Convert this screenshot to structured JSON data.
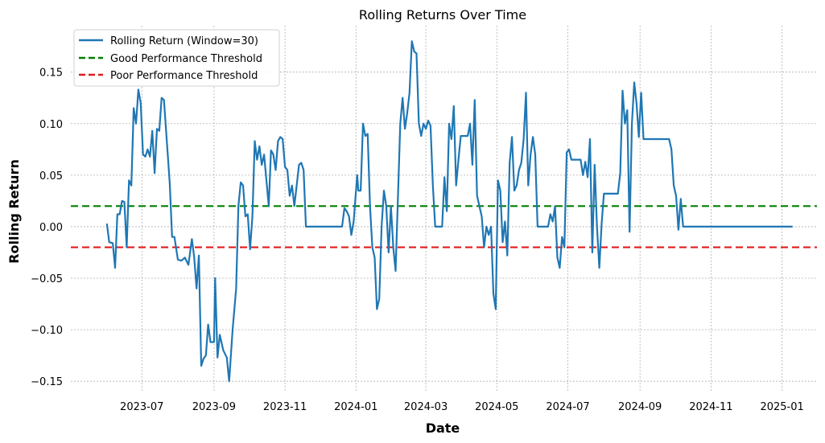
{
  "chart_data": {
    "type": "line",
    "title": "Rolling Returns Over Time",
    "xlabel": "Date",
    "ylabel": "Rolling Return",
    "x_ticks": [
      "2023-07",
      "2023-09",
      "2023-11",
      "2024-01",
      "2024-03",
      "2024-05",
      "2024-07",
      "2024-09",
      "2024-11",
      "2025-01"
    ],
    "y_ticks": [
      0.15,
      0.1,
      0.05,
      0.0,
      -0.05,
      -0.1,
      -0.15
    ],
    "y_tick_labels": [
      "0.15",
      "0.10",
      "0.05",
      "0.00",
      "−0.05",
      "−0.10",
      "−0.15"
    ],
    "xlim": [
      "2023-05-01",
      "2025-01-31"
    ],
    "ylim": [
      -0.16,
      0.195
    ],
    "grid": true,
    "legend_position": "top-left",
    "series": [
      {
        "name": "Rolling Return (Window=30)",
        "color": "#1f77b4",
        "style": "solid",
        "points": [
          [
            "2023-06-01",
            0.003
          ],
          [
            "2023-06-03",
            -0.015
          ],
          [
            "2023-06-06",
            -0.016
          ],
          [
            "2023-06-08",
            -0.04
          ],
          [
            "2023-06-10",
            0.012
          ],
          [
            "2023-06-12",
            0.012
          ],
          [
            "2023-06-14",
            0.025
          ],
          [
            "2023-06-16",
            0.024
          ],
          [
            "2023-06-18",
            -0.02
          ],
          [
            "2023-06-20",
            0.045
          ],
          [
            "2023-06-22",
            0.04
          ],
          [
            "2023-06-24",
            0.115
          ],
          [
            "2023-06-26",
            0.1
          ],
          [
            "2023-06-28",
            0.133
          ],
          [
            "2023-06-30",
            0.12
          ],
          [
            "2023-07-02",
            0.07
          ],
          [
            "2023-07-04",
            0.068
          ],
          [
            "2023-07-06",
            0.075
          ],
          [
            "2023-07-08",
            0.068
          ],
          [
            "2023-07-10",
            0.093
          ],
          [
            "2023-07-12",
            0.052
          ],
          [
            "2023-07-14",
            0.095
          ],
          [
            "2023-07-16",
            0.093
          ],
          [
            "2023-07-18",
            0.125
          ],
          [
            "2023-07-20",
            0.123
          ],
          [
            "2023-07-25",
            0.042
          ],
          [
            "2023-07-27",
            -0.01
          ],
          [
            "2023-07-29",
            -0.01
          ],
          [
            "2023-08-01",
            -0.032
          ],
          [
            "2023-08-04",
            -0.033
          ],
          [
            "2023-08-07",
            -0.03
          ],
          [
            "2023-08-10",
            -0.037
          ],
          [
            "2023-08-13",
            -0.012
          ],
          [
            "2023-08-15",
            -0.03
          ],
          [
            "2023-08-17",
            -0.06
          ],
          [
            "2023-08-19",
            -0.028
          ],
          [
            "2023-08-21",
            -0.135
          ],
          [
            "2023-08-23",
            -0.128
          ],
          [
            "2023-08-25",
            -0.125
          ],
          [
            "2023-08-27",
            -0.095
          ],
          [
            "2023-08-29",
            -0.112
          ],
          [
            "2023-09-01",
            -0.112
          ],
          [
            "2023-09-02",
            -0.05
          ],
          [
            "2023-09-04",
            -0.127
          ],
          [
            "2023-09-06",
            -0.105
          ],
          [
            "2023-09-09",
            -0.12
          ],
          [
            "2023-09-12",
            -0.127
          ],
          [
            "2023-09-14",
            -0.15
          ],
          [
            "2023-09-17",
            -0.1
          ],
          [
            "2023-09-20",
            -0.06
          ],
          [
            "2023-09-22",
            0.02
          ],
          [
            "2023-09-24",
            0.043
          ],
          [
            "2023-09-26",
            0.04
          ],
          [
            "2023-09-28",
            0.01
          ],
          [
            "2023-09-30",
            0.012
          ],
          [
            "2023-10-02",
            -0.022
          ],
          [
            "2023-10-04",
            0.01
          ],
          [
            "2023-10-06",
            0.083
          ],
          [
            "2023-10-08",
            0.065
          ],
          [
            "2023-10-10",
            0.078
          ],
          [
            "2023-10-12",
            0.06
          ],
          [
            "2023-10-14",
            0.07
          ],
          [
            "2023-10-18",
            0.02
          ],
          [
            "2023-10-20",
            0.074
          ],
          [
            "2023-10-22",
            0.07
          ],
          [
            "2023-10-24",
            0.055
          ],
          [
            "2023-10-26",
            0.083
          ],
          [
            "2023-10-28",
            0.087
          ],
          [
            "2023-10-30",
            0.085
          ],
          [
            "2023-11-01",
            0.058
          ],
          [
            "2023-11-03",
            0.055
          ],
          [
            "2023-11-05",
            0.03
          ],
          [
            "2023-11-07",
            0.04
          ],
          [
            "2023-11-09",
            0.02
          ],
          [
            "2023-11-11",
            0.04
          ],
          [
            "2023-11-13",
            0.06
          ],
          [
            "2023-11-15",
            0.062
          ],
          [
            "2023-11-17",
            0.055
          ],
          [
            "2023-11-19",
            0.0
          ],
          [
            "2023-12-20",
            0.0
          ],
          [
            "2023-12-22",
            0.018
          ],
          [
            "2023-12-24",
            0.015
          ],
          [
            "2023-12-26",
            0.01
          ],
          [
            "2023-12-28",
            -0.008
          ],
          [
            "2023-12-30",
            0.005
          ],
          [
            "2024-01-01",
            0.035
          ],
          [
            "2024-01-02",
            0.05
          ],
          [
            "2024-01-03",
            0.035
          ],
          [
            "2024-01-05",
            0.035
          ],
          [
            "2024-01-07",
            0.1
          ],
          [
            "2024-01-09",
            0.088
          ],
          [
            "2024-01-11",
            0.09
          ],
          [
            "2024-01-13",
            0.02
          ],
          [
            "2024-01-15",
            -0.02
          ],
          [
            "2024-01-17",
            -0.03
          ],
          [
            "2024-01-19",
            -0.08
          ],
          [
            "2024-01-21",
            -0.07
          ],
          [
            "2024-01-23",
            0.0
          ],
          [
            "2024-01-25",
            0.035
          ],
          [
            "2024-01-27",
            0.02
          ],
          [
            "2024-01-29",
            -0.025
          ],
          [
            "2024-01-31",
            0.02
          ],
          [
            "2024-02-02",
            -0.02
          ],
          [
            "2024-02-04",
            -0.043
          ],
          [
            "2024-02-06",
            0.028
          ],
          [
            "2024-02-08",
            0.1
          ],
          [
            "2024-02-10",
            0.125
          ],
          [
            "2024-02-12",
            0.095
          ],
          [
            "2024-02-14",
            0.11
          ],
          [
            "2024-02-16",
            0.13
          ],
          [
            "2024-02-18",
            0.18
          ],
          [
            "2024-02-20",
            0.17
          ],
          [
            "2024-02-22",
            0.168
          ],
          [
            "2024-02-24",
            0.1
          ],
          [
            "2024-02-26",
            0.088
          ],
          [
            "2024-02-28",
            0.1
          ],
          [
            "2024-03-01",
            0.095
          ],
          [
            "2024-03-03",
            0.103
          ],
          [
            "2024-03-05",
            0.098
          ],
          [
            "2024-03-07",
            0.04
          ],
          [
            "2024-03-09",
            0.0
          ],
          [
            "2024-03-15",
            0.0
          ],
          [
            "2024-03-17",
            0.048
          ],
          [
            "2024-03-19",
            0.015
          ],
          [
            "2024-03-21",
            0.1
          ],
          [
            "2024-03-23",
            0.085
          ],
          [
            "2024-03-25",
            0.117
          ],
          [
            "2024-03-27",
            0.04
          ],
          [
            "2024-03-29",
            0.065
          ],
          [
            "2024-03-31",
            0.088
          ],
          [
            "2024-04-06",
            0.088
          ],
          [
            "2024-04-08",
            0.1
          ],
          [
            "2024-04-10",
            0.06
          ],
          [
            "2024-04-12",
            0.123
          ],
          [
            "2024-04-14",
            0.03
          ],
          [
            "2024-04-16",
            0.02
          ],
          [
            "2024-04-18",
            0.01
          ],
          [
            "2024-04-20",
            -0.02
          ],
          [
            "2024-04-22",
            0.0
          ],
          [
            "2024-04-24",
            -0.008
          ],
          [
            "2024-04-26",
            0.0
          ],
          [
            "2024-04-28",
            -0.065
          ],
          [
            "2024-04-30",
            -0.08
          ],
          [
            "2024-05-02",
            0.045
          ],
          [
            "2024-05-04",
            0.035
          ],
          [
            "2024-05-06",
            -0.015
          ],
          [
            "2024-05-08",
            0.005
          ],
          [
            "2024-05-10",
            -0.028
          ],
          [
            "2024-05-12",
            0.062
          ],
          [
            "2024-05-14",
            0.087
          ],
          [
            "2024-05-16",
            0.035
          ],
          [
            "2024-05-18",
            0.04
          ],
          [
            "2024-05-20",
            0.055
          ],
          [
            "2024-05-22",
            0.062
          ],
          [
            "2024-05-24",
            0.085
          ],
          [
            "2024-05-26",
            0.13
          ],
          [
            "2024-05-28",
            0.04
          ],
          [
            "2024-05-30",
            0.07
          ],
          [
            "2024-06-01",
            0.087
          ],
          [
            "2024-06-03",
            0.07
          ],
          [
            "2024-06-05",
            0.0
          ],
          [
            "2024-06-14",
            0.0
          ],
          [
            "2024-06-16",
            0.012
          ],
          [
            "2024-06-18",
            0.005
          ],
          [
            "2024-06-20",
            0.02
          ],
          [
            "2024-06-22",
            -0.03
          ],
          [
            "2024-06-24",
            -0.04
          ],
          [
            "2024-06-26",
            -0.01
          ],
          [
            "2024-06-28",
            -0.02
          ],
          [
            "2024-06-30",
            0.072
          ],
          [
            "2024-07-02",
            0.075
          ],
          [
            "2024-07-04",
            0.065
          ],
          [
            "2024-07-12",
            0.065
          ],
          [
            "2024-07-14",
            0.05
          ],
          [
            "2024-07-16",
            0.063
          ],
          [
            "2024-07-18",
            0.048
          ],
          [
            "2024-07-20",
            0.085
          ],
          [
            "2024-07-22",
            -0.025
          ],
          [
            "2024-07-24",
            0.06
          ],
          [
            "2024-07-26",
            0.0
          ],
          [
            "2024-07-28",
            -0.04
          ],
          [
            "2024-07-30",
            0.003
          ],
          [
            "2024-08-01",
            0.032
          ],
          [
            "2024-08-13",
            0.032
          ],
          [
            "2024-08-15",
            0.052
          ],
          [
            "2024-08-17",
            0.132
          ],
          [
            "2024-08-19",
            0.1
          ],
          [
            "2024-08-21",
            0.113
          ],
          [
            "2024-08-23",
            -0.005
          ],
          [
            "2024-08-25",
            0.1
          ],
          [
            "2024-08-27",
            0.14
          ],
          [
            "2024-08-29",
            0.12
          ],
          [
            "2024-08-31",
            0.087
          ],
          [
            "2024-09-02",
            0.13
          ],
          [
            "2024-09-04",
            0.085
          ],
          [
            "2024-09-26",
            0.085
          ],
          [
            "2024-09-28",
            0.075
          ],
          [
            "2024-09-30",
            0.04
          ],
          [
            "2024-10-02",
            0.03
          ],
          [
            "2024-10-04",
            -0.003
          ],
          [
            "2024-10-06",
            0.027
          ],
          [
            "2024-10-08",
            0.0
          ],
          [
            "2025-01-10",
            0.0
          ]
        ]
      },
      {
        "name": "Good Performance Threshold",
        "color": "#008000",
        "style": "dashed",
        "constant": 0.02
      },
      {
        "name": "Poor Performance Threshold",
        "color": "#e31a1c",
        "style": "dashed",
        "constant": -0.02
      }
    ]
  }
}
